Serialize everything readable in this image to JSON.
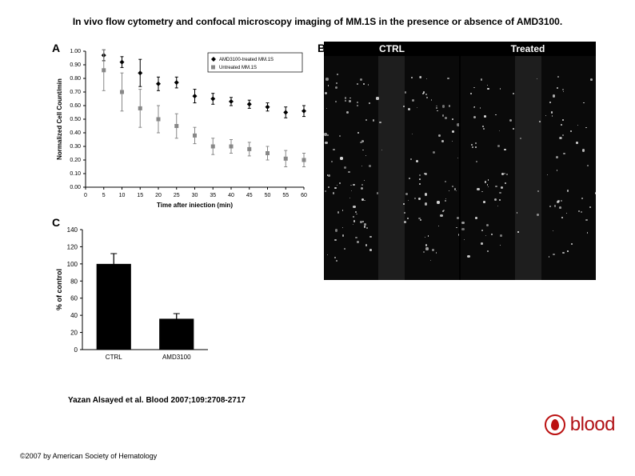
{
  "title": "In vivo flow cytometry and confocal microscopy imaging of MM.1S in the presence or absence of AMD3100.",
  "citation": "Yazan Alsayed et al. Blood 2007;109:2708-2717",
  "copyright": "©2007 by American Society of Hematology",
  "logo_text": "blood",
  "logo_color": "#b11116",
  "panelA": {
    "label": "A",
    "type": "scatter",
    "xlabel": "Time after iniection (min)",
    "ylabel": "Normalized Cell Count/min",
    "label_fontsize": 8,
    "tick_fontsize": 7,
    "xlim": [
      0,
      60
    ],
    "ylim": [
      0,
      1.0
    ],
    "xticks": [
      0,
      5,
      10,
      15,
      20,
      25,
      30,
      35,
      40,
      45,
      50,
      55,
      60
    ],
    "yticks": [
      0,
      0.1,
      0.2,
      0.3,
      0.4,
      0.5,
      0.6,
      0.7,
      0.8,
      0.9,
      1.0
    ],
    "legend": {
      "items": [
        {
          "label": "AMD3100-treated MM.1S",
          "marker": "diamond",
          "fill": "#000000"
        },
        {
          "label": "Untreated MM.1S",
          "marker": "square",
          "fill": "#888888"
        }
      ],
      "border": "#000000",
      "position": "upper-right"
    },
    "series": [
      {
        "name": "treated",
        "marker": "diamond",
        "color": "#000000",
        "points": [
          {
            "x": 5,
            "y": 0.97,
            "err": 0.04
          },
          {
            "x": 10,
            "y": 0.92,
            "err": 0.04
          },
          {
            "x": 15,
            "y": 0.84,
            "err": 0.1
          },
          {
            "x": 20,
            "y": 0.76,
            "err": 0.05
          },
          {
            "x": 25,
            "y": 0.77,
            "err": 0.04
          },
          {
            "x": 30,
            "y": 0.67,
            "err": 0.05
          },
          {
            "x": 35,
            "y": 0.65,
            "err": 0.04
          },
          {
            "x": 40,
            "y": 0.63,
            "err": 0.03
          },
          {
            "x": 45,
            "y": 0.61,
            "err": 0.03
          },
          {
            "x": 50,
            "y": 0.59,
            "err": 0.03
          },
          {
            "x": 55,
            "y": 0.55,
            "err": 0.04
          },
          {
            "x": 60,
            "y": 0.56,
            "err": 0.04
          }
        ]
      },
      {
        "name": "untreated",
        "marker": "square",
        "color": "#888888",
        "points": [
          {
            "x": 5,
            "y": 0.86,
            "err": 0.15
          },
          {
            "x": 10,
            "y": 0.7,
            "err": 0.14
          },
          {
            "x": 15,
            "y": 0.58,
            "err": 0.14
          },
          {
            "x": 20,
            "y": 0.5,
            "err": 0.1
          },
          {
            "x": 25,
            "y": 0.45,
            "err": 0.09
          },
          {
            "x": 30,
            "y": 0.38,
            "err": 0.06
          },
          {
            "x": 35,
            "y": 0.3,
            "err": 0.06
          },
          {
            "x": 40,
            "y": 0.3,
            "err": 0.05
          },
          {
            "x": 45,
            "y": 0.28,
            "err": 0.05
          },
          {
            "x": 50,
            "y": 0.25,
            "err": 0.05
          },
          {
            "x": 55,
            "y": 0.21,
            "err": 0.06
          },
          {
            "x": 60,
            "y": 0.2,
            "err": 0.05
          }
        ]
      }
    ],
    "axis_color": "#000000",
    "background": "#ffffff"
  },
  "panelB": {
    "label": "B",
    "columns": [
      "CTRL",
      "Treated"
    ],
    "header_bg": "#000000",
    "header_fg": "#ffffff",
    "image_bg": "#0a0a0a"
  },
  "panelC": {
    "label": "C",
    "type": "bar",
    "ylabel": "% of control",
    "label_fontsize": 9,
    "tick_fontsize": 8,
    "ylim": [
      0,
      140
    ],
    "yticks": [
      0,
      20,
      40,
      60,
      80,
      100,
      120,
      140
    ],
    "categories": [
      "CTRL",
      "AMD3100"
    ],
    "values": [
      100,
      36
    ],
    "errors": [
      12,
      6
    ],
    "bar_color": "#000000",
    "bar_width": 0.55,
    "axis_color": "#000000",
    "background": "#ffffff"
  }
}
